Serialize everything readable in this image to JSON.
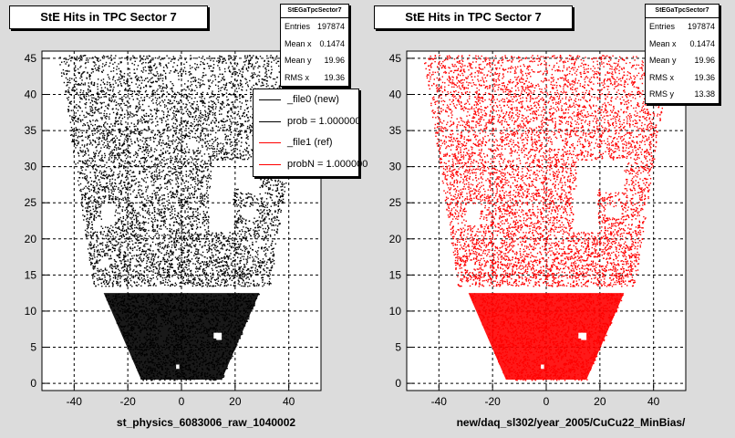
{
  "chart_data": [
    {
      "type": "scatter",
      "title": "StE Hits in TPC Sector 7",
      "xlabel": "st_physics_6083006_raw_1040002",
      "ylabel": "",
      "xlim": [
        -52,
        52
      ],
      "ylim": [
        -1,
        46
      ],
      "xticks": [
        -40,
        -20,
        0,
        20,
        40
      ],
      "yticks": [
        0,
        5,
        10,
        15,
        20,
        25,
        30,
        35,
        40,
        45
      ],
      "grid": true,
      "marker_color": "#000000",
      "stats": {
        "title": "StEGaTpcSector7",
        "rows": [
          {
            "label": "Entries",
            "value": "197874"
          },
          {
            "label": "Mean x",
            "value": "0.1474"
          },
          {
            "label": "Mean y",
            "value": "19.96"
          },
          {
            "label": "RMS x",
            "value": "19.36"
          }
        ]
      },
      "legend": {
        "position": "top-right",
        "entries": [
          {
            "label": "_file0 (new)",
            "color": "#000000"
          },
          {
            "label": "prob = 1.000000",
            "color": "#000000"
          },
          {
            "label": "_file1 (ref)",
            "color": "#ff0000"
          },
          {
            "label": "probN = 1.000000",
            "color": "#ff0000"
          }
        ]
      },
      "distribution": {
        "description_units": "data",
        "upper_region": {
          "y": [
            13.5,
            45.5
          ],
          "x_half_width_at_y_min": 33,
          "x_half_width_at_y_max": 46
        },
        "lower_region": {
          "y": [
            0.5,
            12.5
          ],
          "x_half_width_at_y_min": 15,
          "x_half_width_at_y_max": 29
        },
        "gap_y": [
          12.5,
          13.5
        ],
        "empty_patches": [
          {
            "x": [
              10,
              19
            ],
            "y": [
              21,
              27
            ]
          },
          {
            "x": [
              11,
              22
            ],
            "y": [
              27,
              31
            ]
          },
          {
            "x": [
              21,
              29
            ],
            "y": [
              26.5,
              31
            ]
          },
          {
            "x": [
              -30,
              -25
            ],
            "y": [
              22,
              25
            ]
          },
          {
            "x": [
              22,
              28
            ],
            "y": [
              23,
              24.5
            ]
          },
          {
            "x": [
              -30,
              -27
            ],
            "y": [
              16,
              17
            ]
          },
          {
            "x": [
              2,
              5
            ],
            "y": [
              32.5,
              34
            ]
          },
          {
            "x": [
              -6,
              -2
            ],
            "y": [
              42,
              43
            ]
          }
        ]
      }
    },
    {
      "type": "scatter",
      "title": "StE Hits in TPC Sector 7",
      "xlabel": "new/daq_sl302/year_2005/CuCu22_MinBias/",
      "ylabel": "",
      "xlim": [
        -52,
        52
      ],
      "ylim": [
        -1,
        46
      ],
      "xticks": [
        -40,
        -20,
        0,
        20,
        40
      ],
      "yticks": [
        0,
        5,
        10,
        15,
        20,
        25,
        30,
        35,
        40,
        45
      ],
      "grid": true,
      "marker_color": "#ff0000",
      "stats": {
        "title": "StEGaTpcSector7",
        "rows": [
          {
            "label": "Entries",
            "value": "197874"
          },
          {
            "label": "Mean x",
            "value": "0.1474"
          },
          {
            "label": "Mean y",
            "value": "19.96"
          },
          {
            "label": "RMS x",
            "value": "19.36"
          },
          {
            "label": "RMS y",
            "value": "13.38"
          }
        ]
      },
      "distribution": {
        "description_units": "data",
        "upper_region": {
          "y": [
            13.5,
            45.5
          ],
          "x_half_width_at_y_min": 33,
          "x_half_width_at_y_max": 46
        },
        "lower_region": {
          "y": [
            0.5,
            12.5
          ],
          "x_half_width_at_y_min": 15,
          "x_half_width_at_y_max": 29
        },
        "gap_y": [
          12.5,
          13.5
        ],
        "empty_patches": [
          {
            "x": [
              10,
              19
            ],
            "y": [
              21,
              27
            ]
          },
          {
            "x": [
              11,
              22
            ],
            "y": [
              27,
              31
            ]
          },
          {
            "x": [
              21,
              29
            ],
            "y": [
              26.5,
              31
            ]
          },
          {
            "x": [
              -30,
              -25
            ],
            "y": [
              22,
              25
            ]
          },
          {
            "x": [
              22,
              28
            ],
            "y": [
              23,
              24.5
            ]
          },
          {
            "x": [
              -30,
              -27
            ],
            "y": [
              16,
              17
            ]
          },
          {
            "x": [
              2,
              5
            ],
            "y": [
              32.5,
              34
            ]
          },
          {
            "x": [
              -6,
              -2
            ],
            "y": [
              42,
              43
            ]
          }
        ]
      }
    }
  ]
}
